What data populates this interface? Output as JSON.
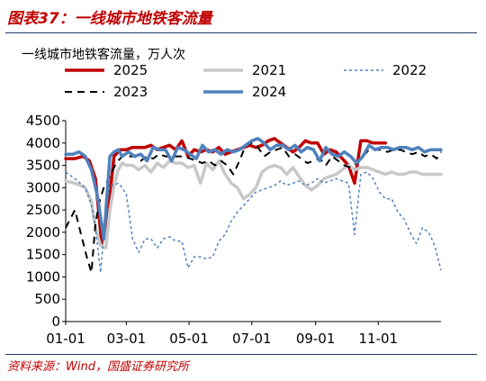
{
  "header": {
    "title": "图表37：一线城市地铁客流量"
  },
  "footer": {
    "source": "资料来源：Wind，国盛证券研究所"
  },
  "chart_data": {
    "type": "line",
    "ylabel": "一线城市地铁客流量，万人次",
    "ylim": [
      0,
      4500
    ],
    "yticks": [
      0,
      500,
      1000,
      1500,
      2000,
      2500,
      3000,
      3500,
      4000,
      4500
    ],
    "xticks": [
      {
        "day": 1,
        "label": "01-01"
      },
      {
        "day": 60,
        "label": "03-01"
      },
      {
        "day": 121,
        "label": "05-01"
      },
      {
        "day": 182,
        "label": "07-01"
      },
      {
        "day": 244,
        "label": "09-01"
      },
      {
        "day": 305,
        "label": "11-01"
      }
    ],
    "xlim_days": [
      1,
      366
    ],
    "legend_position": "top",
    "series": [
      {
        "name": "2025",
        "color": "#c00000",
        "style": "solid",
        "width": 3.5,
        "x": [
          1,
          10,
          18,
          24,
          30,
          36,
          42,
          48,
          54,
          60,
          66,
          72,
          78,
          84,
          90,
          96,
          102,
          108,
          114,
          120,
          126,
          132,
          138,
          144,
          150,
          156,
          162,
          168,
          174,
          180,
          186,
          192,
          198,
          204,
          210,
          216,
          222,
          228,
          234,
          240,
          246,
          252,
          258,
          264,
          270,
          276,
          282,
          288,
          294,
          300,
          306,
          312
        ],
        "y": [
          3650,
          3650,
          3700,
          3600,
          3200,
          1750,
          2400,
          3700,
          3850,
          3850,
          3900,
          3900,
          3900,
          3950,
          3850,
          3900,
          3950,
          3850,
          4050,
          3700,
          3850,
          3800,
          3850,
          3800,
          3900,
          3750,
          3800,
          3850,
          3900,
          3950,
          3900,
          3950,
          4050,
          4100,
          4000,
          3900,
          3800,
          3900,
          4050,
          4000,
          4000,
          3750,
          3850,
          3800,
          3650,
          3500,
          3100,
          4050,
          4050,
          4000,
          4000,
          4000
        ]
      },
      {
        "name": "2021",
        "color": "#c8c8c8",
        "style": "solid",
        "width": 3.5,
        "x": [
          1,
          10,
          20,
          26,
          30,
          35,
          40,
          44,
          48,
          52,
          56,
          60,
          66,
          72,
          78,
          84,
          90,
          96,
          102,
          108,
          114,
          120,
          126,
          132,
          138,
          144,
          150,
          156,
          162,
          168,
          174,
          180,
          186,
          192,
          198,
          204,
          210,
          216,
          222,
          228,
          234,
          240,
          246,
          252,
          258,
          264,
          270,
          276,
          282,
          288,
          294,
          300,
          306,
          312,
          318,
          324,
          330,
          336,
          342,
          348,
          354,
          360,
          366
        ],
        "y": [
          3150,
          3100,
          3000,
          2700,
          2100,
          1700,
          1650,
          2500,
          3050,
          3400,
          3550,
          3500,
          3500,
          3400,
          3500,
          3350,
          3550,
          3450,
          3600,
          3550,
          3550,
          3450,
          3500,
          3100,
          3550,
          3400,
          3600,
          3300,
          3100,
          3000,
          2750,
          2850,
          3000,
          3350,
          3450,
          3500,
          3450,
          3300,
          3450,
          3250,
          3050,
          2950,
          3050,
          3200,
          3250,
          3300,
          3400,
          3500,
          3400,
          3450,
          3450,
          3400,
          3350,
          3300,
          3350,
          3300,
          3300,
          3350,
          3350,
          3300,
          3300,
          3300,
          3300
        ]
      },
      {
        "name": "2022",
        "color": "#4f81bd",
        "style": "dotted",
        "width": 1.5,
        "x": [
          1,
          10,
          20,
          26,
          30,
          35,
          40,
          44,
          48,
          52,
          56,
          60,
          66,
          72,
          78,
          84,
          90,
          96,
          102,
          108,
          114,
          120,
          126,
          132,
          138,
          144,
          150,
          156,
          162,
          168,
          174,
          180,
          186,
          192,
          198,
          204,
          210,
          216,
          222,
          228,
          234,
          240,
          246,
          252,
          258,
          264,
          270,
          276,
          282,
          288,
          294,
          300,
          306,
          312,
          318,
          324,
          330,
          336,
          342,
          348,
          354,
          360,
          366
        ],
        "y": [
          3350,
          3200,
          3000,
          2600,
          2100,
          1100,
          2500,
          3050,
          3050,
          3100,
          3000,
          2850,
          1850,
          1550,
          1850,
          1850,
          1650,
          1850,
          1900,
          1800,
          1800,
          1200,
          1450,
          1450,
          1400,
          1450,
          1800,
          1950,
          2250,
          2450,
          2600,
          2750,
          2900,
          2950,
          3000,
          3050,
          3150,
          3050,
          3100,
          3150,
          3050,
          3100,
          3200,
          3100,
          3150,
          3200,
          3150,
          3100,
          1950,
          3300,
          3350,
          3200,
          2900,
          2750,
          2750,
          2450,
          2300,
          2000,
          1750,
          2100,
          2000,
          1700,
          1150
        ]
      },
      {
        "name": "2023",
        "color": "#000000",
        "style": "dashed",
        "width": 2,
        "x": [
          1,
          10,
          16,
          22,
          26,
          30,
          34,
          38,
          44,
          50,
          56,
          62,
          68,
          74,
          80,
          86,
          92,
          98,
          104,
          110,
          116,
          122,
          128,
          134,
          140,
          146,
          152,
          158,
          164,
          170,
          176,
          182,
          188,
          194,
          200,
          206,
          212,
          218,
          224,
          230,
          236,
          242,
          248,
          254,
          260,
          266,
          272,
          278,
          284,
          290,
          296,
          302,
          308,
          314,
          320,
          326,
          332,
          338,
          344,
          350,
          356,
          362,
          366
        ],
        "y": [
          2100,
          2500,
          1950,
          1400,
          1100,
          2200,
          2700,
          3000,
          3250,
          3550,
          3700,
          3700,
          3700,
          3600,
          3700,
          3650,
          3750,
          3700,
          3700,
          3700,
          3700,
          3650,
          3600,
          3550,
          3600,
          3500,
          3600,
          3500,
          3300,
          3600,
          3950,
          4000,
          3900,
          3700,
          3800,
          3850,
          3900,
          3700,
          3750,
          3650,
          3550,
          3600,
          3650,
          3500,
          3700,
          3600,
          3500,
          3450,
          3550,
          3700,
          3850,
          3850,
          3850,
          3800,
          3850,
          3850,
          3800,
          3750,
          3800,
          3700,
          3750,
          3650,
          3800
        ]
      },
      {
        "name": "2024",
        "color": "#4f81bd",
        "style": "solid",
        "width": 3.5,
        "x": [
          1,
          8,
          14,
          20,
          26,
          32,
          38,
          44,
          48,
          52,
          56,
          62,
          68,
          74,
          80,
          86,
          92,
          98,
          104,
          110,
          116,
          122,
          128,
          134,
          140,
          146,
          152,
          158,
          164,
          170,
          176,
          182,
          188,
          194,
          200,
          206,
          212,
          218,
          224,
          230,
          236,
          242,
          248,
          254,
          260,
          266,
          272,
          278,
          284,
          290,
          296,
          302,
          308,
          314,
          320,
          326,
          332,
          338,
          344,
          350,
          356,
          362,
          366
        ],
        "y": [
          3750,
          3750,
          3800,
          3700,
          3400,
          2800,
          1850,
          3700,
          3800,
          3850,
          3700,
          3800,
          3700,
          3750,
          3600,
          3900,
          3850,
          3850,
          3600,
          3900,
          3850,
          3750,
          3650,
          3950,
          3800,
          3850,
          3750,
          3850,
          3800,
          3850,
          3950,
          4050,
          4100,
          4000,
          3850,
          3950,
          3950,
          3850,
          3950,
          3800,
          3900,
          3850,
          3600,
          3900,
          3750,
          3700,
          3800,
          3700,
          3550,
          3700,
          3950,
          3850,
          3900,
          3900,
          3850,
          3900,
          3900,
          3850,
          3900,
          3800,
          3850,
          3850,
          3850
        ]
      }
    ]
  }
}
